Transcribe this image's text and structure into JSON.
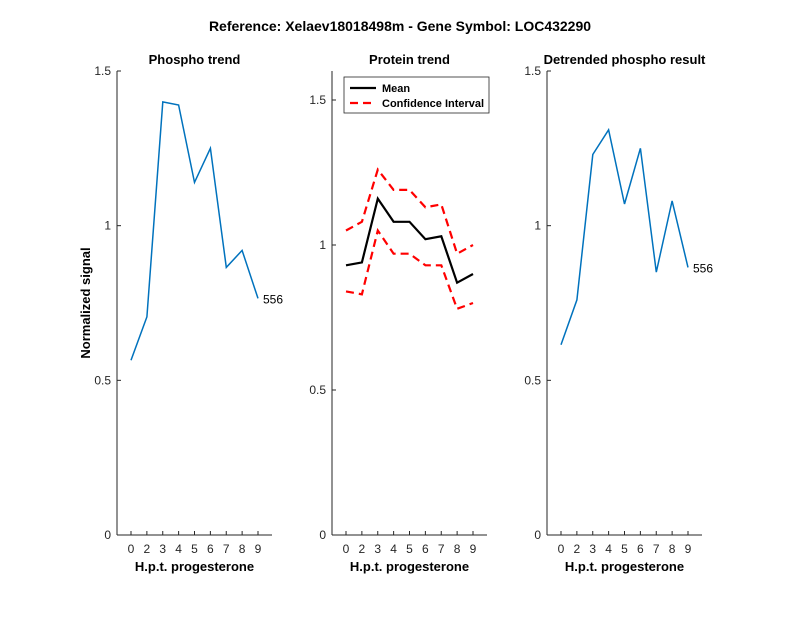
{
  "figure": {
    "title": "Reference:  Xelaev18018498m - Gene Symbol:  LOC432290"
  },
  "chart_data": [
    {
      "type": "line",
      "title": "Phospho trend",
      "xlabel": "H.p.t. progesterone",
      "ylabel": "Normalized signal",
      "categories": [
        "0",
        "2",
        "3",
        "4",
        "5",
        "6",
        "7",
        "8",
        "9"
      ],
      "ylim": [
        0,
        1.5
      ],
      "yticks": [
        "0",
        "0.5",
        "1",
        "1.5"
      ],
      "series": [
        {
          "values": [
            0.565,
            0.705,
            1.4,
            1.39,
            1.14,
            1.25,
            0.865,
            0.92,
            0.765
          ],
          "color": "#0072BD"
        }
      ],
      "annotation": "556"
    },
    {
      "type": "line",
      "title": "Protein trend",
      "xlabel": "H.p.t. progesterone",
      "categories": [
        "0",
        "2",
        "3",
        "4",
        "5",
        "6",
        "7",
        "8",
        "9"
      ],
      "ylim": [
        0,
        1.6
      ],
      "yticks": [
        "0",
        "0.5",
        "1",
        "1.5"
      ],
      "legend": {
        "position": "top-left",
        "entries": [
          "Mean",
          "Confidence Interval"
        ]
      },
      "series": [
        {
          "name": "Mean",
          "values": [
            0.93,
            0.94,
            1.16,
            1.08,
            1.08,
            1.02,
            1.03,
            0.87,
            0.9
          ],
          "color": "#000000",
          "style": "solid"
        },
        {
          "name": "Confidence Interval",
          "values": [
            1.05,
            1.08,
            1.26,
            1.19,
            1.19,
            1.13,
            1.14,
            0.97,
            1.0
          ],
          "color": "#FF0000",
          "style": "dashed"
        },
        {
          "name": "Confidence Interval",
          "values": [
            0.84,
            0.83,
            1.05,
            0.97,
            0.97,
            0.93,
            0.93,
            0.78,
            0.8
          ],
          "color": "#FF0000",
          "style": "dashed"
        }
      ]
    },
    {
      "type": "line",
      "title": "Detrended phospho result",
      "xlabel": "H.p.t. progesterone",
      "categories": [
        "0",
        "2",
        "3",
        "4",
        "5",
        "6",
        "7",
        "8",
        "9"
      ],
      "ylim": [
        0,
        1.5
      ],
      "yticks": [
        "0",
        "0.5",
        "1",
        "1.5"
      ],
      "series": [
        {
          "values": [
            0.615,
            0.76,
            1.23,
            1.31,
            1.07,
            1.25,
            0.85,
            1.08,
            0.865
          ],
          "color": "#0072BD"
        }
      ],
      "annotation": "556"
    }
  ]
}
